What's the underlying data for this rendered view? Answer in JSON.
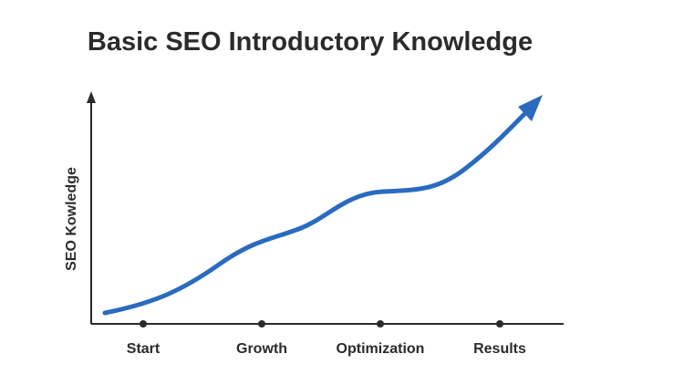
{
  "title": "Basic SEO Introductory Knowledge",
  "y_axis_label": "SEO Kowledge",
  "stages": [
    "Start",
    "Growth",
    "Optimization",
    "Results"
  ]
}
